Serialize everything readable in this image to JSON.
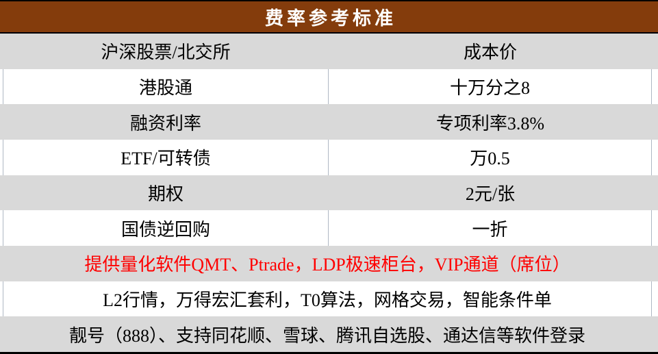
{
  "table": {
    "title": "费率参考标准",
    "rows": [
      {
        "label": "沪深股票/北交所",
        "value": "成本价"
      },
      {
        "label": "港股通",
        "value": "十万分之8"
      },
      {
        "label": "融资利率",
        "value": "专项利率3.8%"
      },
      {
        "label": "ETF/可转债",
        "value": "万0.5"
      },
      {
        "label": "期权",
        "value": "2元/张"
      },
      {
        "label": "国债逆回购",
        "value": "一折"
      }
    ],
    "notes": [
      {
        "text": "提供量化软件QMT、Ptrade，LDP极速柜台，VIP通道（席位）",
        "highlight": true
      },
      {
        "text": "L2行情，万得宏汇套利，T0算法，网格交易，智能条件单",
        "highlight": false
      },
      {
        "text": "靓号（888）、支持同花顺、雪球、腾讯自选股、通达信等软件登录",
        "highlight": false
      }
    ],
    "colors": {
      "header_bg": "#843C0C",
      "header_text": "#FFFFFF",
      "row_alt_bg": "#D9D9D9",
      "row_bg": "#FFFFFF",
      "highlight_text": "#FF0000",
      "text": "#000000",
      "gridline": "#AEB7C3",
      "border": "#000000"
    }
  }
}
